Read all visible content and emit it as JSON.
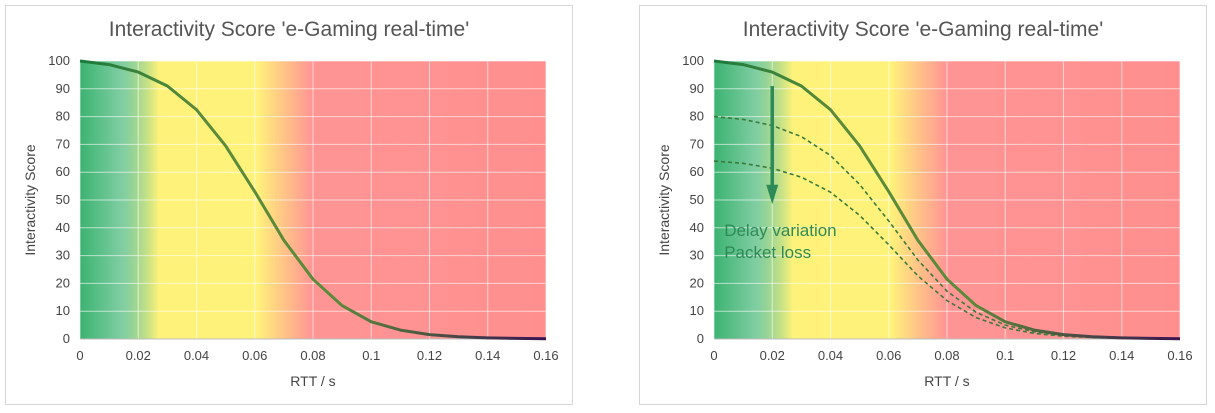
{
  "chart_data": [
    {
      "type": "line",
      "title": "Interactivity  Score 'e-Gaming real-time'",
      "xlabel": "RTT  / s",
      "ylabel": "Interactivity Score",
      "xlim": [
        0,
        0.16
      ],
      "ylim": [
        0,
        100
      ],
      "x_ticks": [
        "0",
        "0.02",
        "0.04",
        "0.06",
        "0.08",
        "0.1",
        "0.12",
        "0.14",
        "0.16"
      ],
      "y_ticks": [
        "0",
        "10",
        "20",
        "30",
        "40",
        "50",
        "60",
        "70",
        "80",
        "90",
        "100"
      ],
      "grid": true,
      "background_zones": [
        "green",
        "yellow",
        "red"
      ],
      "series": [
        {
          "style": "solid",
          "x": [
            0,
            0.01,
            0.02,
            0.03,
            0.04,
            0.05,
            0.06,
            0.07,
            0.08,
            0.09,
            0.1,
            0.11,
            0.12,
            0.13,
            0.14,
            0.15,
            0.16
          ],
          "y": [
            100,
            98.7,
            96,
            91,
            82.5,
            69.5,
            53,
            35.5,
            21.5,
            12,
            6.2,
            3.2,
            1.6,
            0.8,
            0.4,
            0.2,
            0.1
          ]
        }
      ]
    },
    {
      "type": "line",
      "title": "Interactivity  Score 'e-Gaming real-time'",
      "xlabel": "RTT  / s",
      "ylabel": "Interactivity Score",
      "xlim": [
        0,
        0.16
      ],
      "ylim": [
        0,
        100
      ],
      "x_ticks": [
        "0",
        "0.02",
        "0.04",
        "0.06",
        "0.08",
        "0.1",
        "0.12",
        "0.14",
        "0.16"
      ],
      "y_ticks": [
        "0",
        "10",
        "20",
        "30",
        "40",
        "50",
        "60",
        "70",
        "80",
        "90",
        "100"
      ],
      "grid": true,
      "background_zones": [
        "green",
        "yellow",
        "red"
      ],
      "annotations": [
        "Delay variation",
        "Packet loss"
      ],
      "series": [
        {
          "style": "solid",
          "x": [
            0,
            0.01,
            0.02,
            0.03,
            0.04,
            0.05,
            0.06,
            0.07,
            0.08,
            0.09,
            0.1,
            0.11,
            0.12,
            0.13,
            0.14,
            0.15,
            0.16
          ],
          "y": [
            100,
            98.7,
            96,
            91,
            82.5,
            69.5,
            53,
            35.5,
            21.5,
            12,
            6.2,
            3.2,
            1.6,
            0.8,
            0.4,
            0.2,
            0.1
          ]
        },
        {
          "style": "dashed",
          "x": [
            0,
            0.01,
            0.02,
            0.03,
            0.04,
            0.05,
            0.06,
            0.07,
            0.08,
            0.09,
            0.1,
            0.11,
            0.12,
            0.13,
            0.14,
            0.15,
            0.16
          ],
          "y": [
            80,
            79,
            76.8,
            72.8,
            66,
            55.6,
            42.4,
            28.4,
            17.2,
            9.6,
            5,
            2.6,
            1.3,
            0.6,
            0.3,
            0.2,
            0.1
          ]
        },
        {
          "style": "dashed",
          "x": [
            0,
            0.01,
            0.02,
            0.03,
            0.04,
            0.05,
            0.06,
            0.07,
            0.08,
            0.09,
            0.1,
            0.11,
            0.12,
            0.13,
            0.14,
            0.15,
            0.16
          ],
          "y": [
            64,
            63.2,
            61.4,
            58.2,
            52.8,
            44.5,
            33.9,
            22.7,
            13.8,
            7.7,
            4,
            2,
            1,
            0.5,
            0.3,
            0.1,
            0.1
          ]
        }
      ]
    }
  ],
  "colors": {
    "line_start": "#1a7a3c",
    "line_mid": "#5a8a3a",
    "line_end": "#3a1450",
    "dashed_line": "#3b7a3b",
    "arrow": "#2e8b57",
    "grid": "#ffffff",
    "zone_green": "#3cb371",
    "zone_yellow": "#fff27a",
    "zone_red": "#ff8f8f"
  }
}
